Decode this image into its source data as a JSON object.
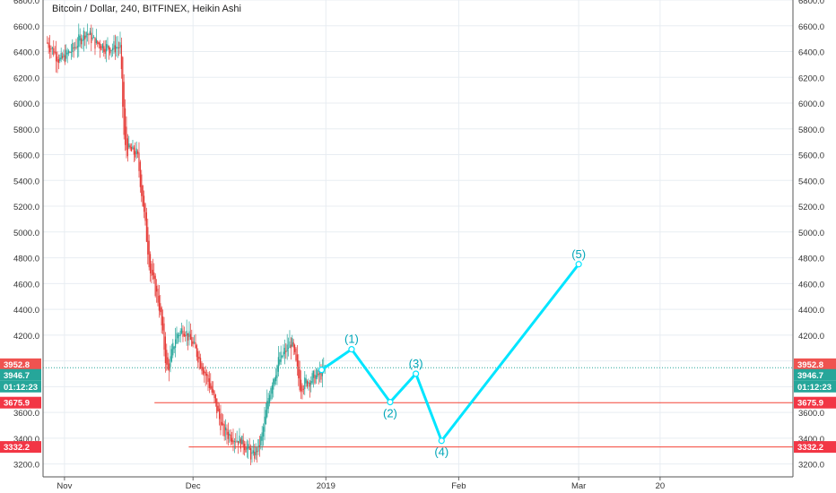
{
  "chart_data": {
    "type": "candlestick",
    "title": "Bitcoin / Dollar, 240, BITFINEX, Heikin Ashi",
    "colors": {
      "up": "#26a69a",
      "down": "#e53935",
      "wave": "#00e5ff",
      "hline": "#f44336",
      "wave_label": "#00a6b8",
      "current": "#26a69a"
    },
    "ylim": [
      3100,
      6800
    ],
    "y_ticks": [
      "6800.0",
      "6600.0",
      "6400.0",
      "6200.0",
      "6000.0",
      "5800.0",
      "5600.0",
      "5400.0",
      "5200.0",
      "5000.0",
      "4800.0",
      "4600.0",
      "4400.0",
      "4200.0",
      "4000.0",
      "3800.0",
      "3600.0",
      "3400.0",
      "3200.0"
    ],
    "x_ticks": [
      {
        "label": "Nov",
        "date": "2018-11-01"
      },
      {
        "label": "Dec",
        "date": "2018-12-01"
      },
      {
        "label": "2019",
        "date": "2019-01-01"
      },
      {
        "label": "Feb",
        "date": "2019-02-01"
      },
      {
        "label": "Mar",
        "date": "2019-03-01"
      },
      {
        "label": "20",
        "date": "2019-03-20"
      }
    ],
    "price_path": [
      {
        "date": "2018-10-28",
        "value": 6470
      },
      {
        "date": "2018-10-31",
        "value": 6330
      },
      {
        "date": "2018-11-03",
        "value": 6420
      },
      {
        "date": "2018-11-06",
        "value": 6560
      },
      {
        "date": "2018-11-08",
        "value": 6470
      },
      {
        "date": "2018-11-11",
        "value": 6430
      },
      {
        "date": "2018-11-14",
        "value": 6440
      },
      {
        "date": "2018-11-15",
        "value": 5650
      },
      {
        "date": "2018-11-18",
        "value": 5600
      },
      {
        "date": "2018-11-19",
        "value": 5300
      },
      {
        "date": "2018-11-21",
        "value": 4700
      },
      {
        "date": "2018-11-23",
        "value": 4450
      },
      {
        "date": "2018-11-25",
        "value": 3900
      },
      {
        "date": "2018-11-27",
        "value": 4200
      },
      {
        "date": "2018-11-29",
        "value": 4250
      },
      {
        "date": "2018-12-02",
        "value": 4050
      },
      {
        "date": "2018-12-05",
        "value": 3800
      },
      {
        "date": "2018-12-08",
        "value": 3450
      },
      {
        "date": "2018-12-11",
        "value": 3400
      },
      {
        "date": "2018-12-13",
        "value": 3350
      },
      {
        "date": "2018-12-15",
        "value": 3250
      },
      {
        "date": "2018-12-17",
        "value": 3400
      },
      {
        "date": "2018-12-19",
        "value": 3800
      },
      {
        "date": "2018-12-21",
        "value": 4000
      },
      {
        "date": "2018-12-24",
        "value": 4150
      },
      {
        "date": "2018-12-26",
        "value": 3800
      },
      {
        "date": "2018-12-28",
        "value": 3850
      },
      {
        "date": "2018-12-31",
        "value": 3900
      },
      {
        "date": "2019-01-01",
        "value": 3950
      }
    ],
    "horizontal_lines": [
      {
        "price": 3675.9,
        "label": "3675.9",
        "from": "2018-11-22"
      },
      {
        "price": 3332.2,
        "label": "3332.2",
        "from": "2018-11-30"
      }
    ],
    "current_price": {
      "price": 3946.7,
      "label": "3946.7"
    },
    "ask_price": {
      "price": 3952.8,
      "label": "3952.8"
    },
    "countdown": "01:12:23",
    "elliott_wave": [
      {
        "date": "2018-12-31",
        "value": 3930,
        "label": ""
      },
      {
        "date": "2019-01-07",
        "value": 4090,
        "label": "(1)"
      },
      {
        "date": "2019-01-16",
        "value": 3680,
        "label": "(2)"
      },
      {
        "date": "2019-01-22",
        "value": 3900,
        "label": "(3)"
      },
      {
        "date": "2019-01-28",
        "value": 3380,
        "label": "(4)"
      },
      {
        "date": "2019-03-01",
        "value": 4750,
        "label": "(5)"
      }
    ]
  }
}
